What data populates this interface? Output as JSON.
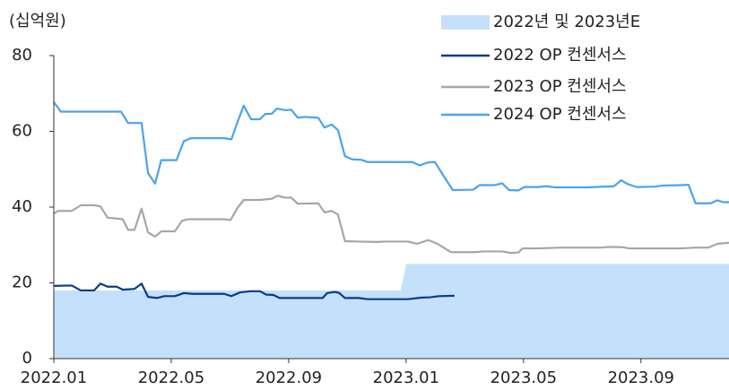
{
  "chart_data": {
    "type": "line",
    "y_label": "(십억원)",
    "xlim": [
      0,
      23
    ],
    "xticks": [
      {
        "value": 0,
        "label": "2022.01"
      },
      {
        "value": 4,
        "label": "2022.05"
      },
      {
        "value": 8,
        "label": "2022.09"
      },
      {
        "value": 12,
        "label": "2023.01"
      },
      {
        "value": 16,
        "label": "2023.05"
      },
      {
        "value": 20,
        "label": "2023.09"
      }
    ],
    "ylim": [
      0,
      80
    ],
    "yticks": [
      0,
      20,
      40,
      60,
      80
    ],
    "grid": false,
    "legend": "upper right",
    "series": [
      {
        "name": "2022년 및 2023년E",
        "type": "area",
        "color": "#c5e0fa",
        "x": [
          0,
          11.82,
          12,
          23
        ],
        "values": [
          18,
          18,
          25,
          25
        ]
      },
      {
        "name": "2022 OP 컨센서스",
        "type": "line",
        "color": "#0a3a8c",
        "x": [
          0,
          0.61,
          0.92,
          1.37,
          1.59,
          1.83,
          2.14,
          2.35,
          2.75,
          2.99,
          3.21,
          3.51,
          3.76,
          4.12,
          4.43,
          4.73,
          5.8,
          6.05,
          6.35,
          6.72,
          7.02,
          7.24,
          7.48,
          7.69,
          9.16,
          9.31,
          9.56,
          9.71,
          9.92,
          10.38,
          10.69,
          12.06,
          12.52,
          12.82,
          13.13,
          13.65
        ],
        "values": [
          19.2,
          19.3,
          18,
          18,
          19.8,
          19,
          19,
          18.2,
          18.4,
          19.8,
          16.3,
          16,
          16.5,
          16.5,
          17.3,
          17.1,
          17.1,
          16.5,
          17.5,
          17.8,
          17.8,
          16.9,
          16.8,
          16,
          16,
          17.3,
          17.6,
          17.4,
          16,
          16,
          15.7,
          15.7,
          16.1,
          16.2,
          16.5,
          16.6
        ]
      },
      {
        "name": "2023 OP 컨센서스",
        "type": "line",
        "color": "#a6a6a6",
        "x": [
          0,
          0.15,
          0.61,
          0.92,
          1.37,
          1.59,
          1.83,
          2.14,
          2.35,
          2.53,
          2.75,
          2.99,
          3.21,
          3.45,
          3.66,
          4.12,
          4.37,
          4.58,
          5.8,
          6.02,
          6.26,
          6.47,
          7.02,
          7.42,
          7.63,
          7.88,
          8.09,
          8.31,
          9.01,
          9.22,
          9.47,
          9.68,
          9.92,
          10.38,
          10.99,
          11.3,
          12.06,
          12.37,
          12.76,
          13.07,
          13.53,
          14.35,
          14.66,
          15.27,
          15.57,
          15.82,
          15.97,
          16.49,
          17.25,
          18.63,
          18.93,
          19.39,
          19.6,
          21.37,
          21.83,
          22.29,
          22.6,
          23
        ],
        "values": [
          38.3,
          39,
          39,
          40.5,
          40.5,
          40.2,
          37.2,
          37,
          36.8,
          34,
          34,
          39.6,
          33.3,
          32.2,
          33.6,
          33.6,
          36.4,
          36.8,
          36.8,
          36.6,
          39.8,
          41.9,
          41.9,
          42.2,
          43,
          42.5,
          42.5,
          40.9,
          41,
          38.6,
          39,
          38,
          31,
          30.9,
          30.8,
          30.9,
          30.9,
          30.3,
          31.3,
          30.3,
          28.1,
          28.1,
          28.3,
          28.3,
          27.9,
          28,
          29.1,
          29.1,
          29.3,
          29.3,
          29.5,
          29.4,
          29.1,
          29.1,
          29.3,
          29.3,
          30.3,
          30.6
        ]
      },
      {
        "name": "2024 OP 컨센서스",
        "type": "line",
        "color": "#4aa3ec",
        "x": [
          0,
          0.24,
          2.29,
          2.53,
          2.99,
          3.21,
          3.45,
          3.66,
          4.18,
          4.43,
          4.67,
          5.8,
          6.05,
          6.26,
          6.47,
          6.72,
          7.02,
          7.21,
          7.42,
          7.6,
          7.88,
          8.09,
          8.31,
          8.55,
          9.01,
          9.22,
          9.47,
          9.68,
          9.92,
          10.17,
          10.47,
          10.69,
          12.21,
          12.46,
          12.76,
          12.98,
          13.28,
          13.59,
          14.29,
          14.5,
          15.02,
          15.27,
          15.51,
          15.82,
          16.03,
          16.49,
          16.79,
          17.1,
          18.17,
          19.08,
          19.33,
          19.54,
          19.85,
          20.46,
          20.76,
          21.37,
          21.62,
          21.86,
          22.38,
          22.6,
          22.81,
          23
        ],
        "values": [
          67.7,
          65.2,
          65.2,
          62.2,
          62.2,
          49,
          46.2,
          52.4,
          52.4,
          57.4,
          58.2,
          58.2,
          57.9,
          62.5,
          66.8,
          63.2,
          63.2,
          64.6,
          64.6,
          66,
          65.6,
          65.7,
          63.6,
          63.8,
          63.6,
          61,
          61.8,
          60.3,
          53.4,
          52.6,
          52.5,
          51.9,
          51.9,
          51,
          51.8,
          51.9,
          48.2,
          44.5,
          44.6,
          45.8,
          45.8,
          46.3,
          44.5,
          44.4,
          45.3,
          45.3,
          45.5,
          45.2,
          45.2,
          45.5,
          47.1,
          46.1,
          45.3,
          45.4,
          45.7,
          45.8,
          45.9,
          41,
          41,
          41.8,
          41.3,
          41.3
        ]
      }
    ]
  }
}
